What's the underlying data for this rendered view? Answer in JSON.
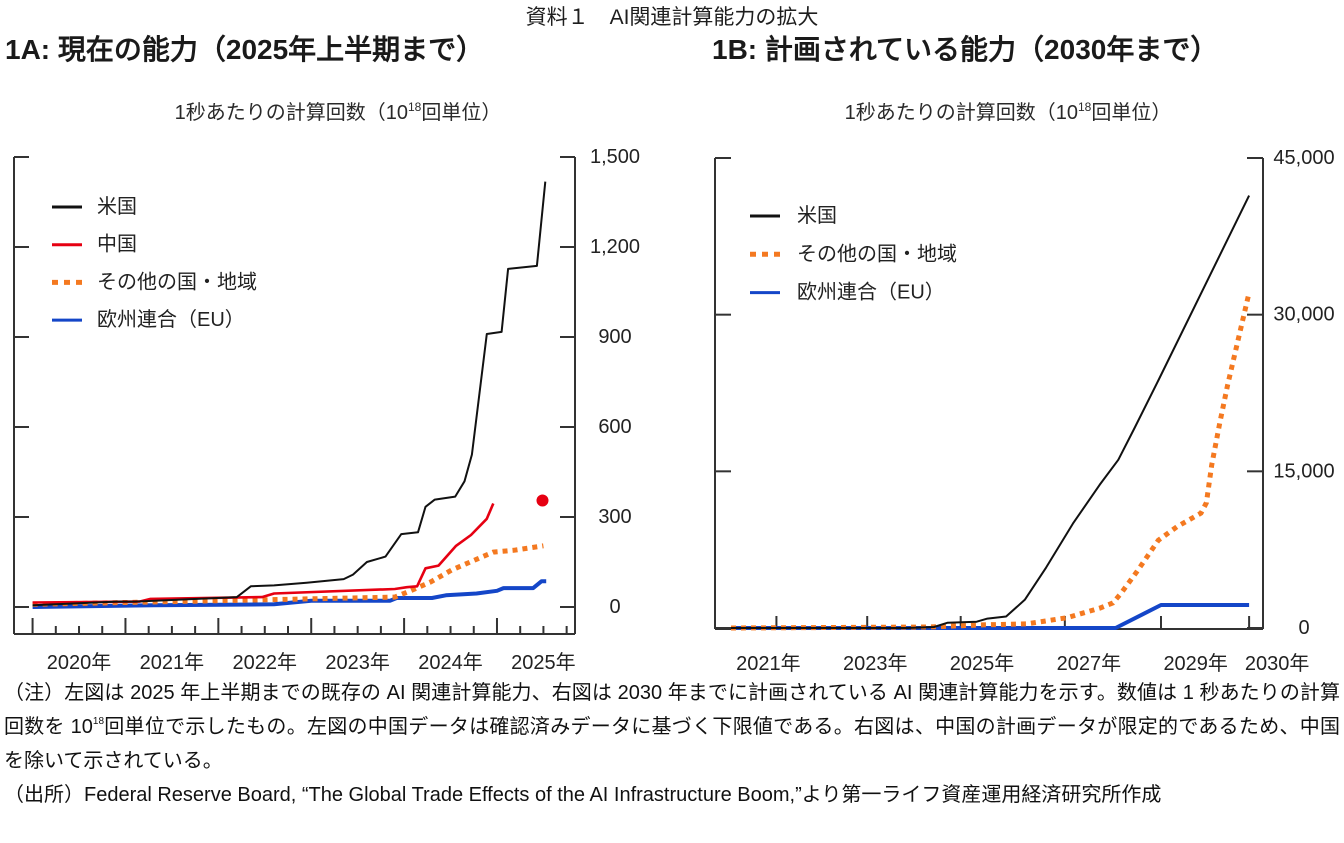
{
  "figure_title": "資料１　AI関連計算能力の拡大",
  "chart_data": [
    {
      "type": "line",
      "title": "1A: 現在の能力（2025年上半期まで）",
      "ylabel": {
        "prefix": "1秒あたりの計算回数（10",
        "exponent": "18",
        "suffix": "回単位）"
      },
      "xlabel": "",
      "xlim": [
        2019.8,
        2025.84
      ],
      "ylim": [
        0,
        1500
      ],
      "y_axis_side": "right",
      "grid": false,
      "legend_position": "top-left",
      "yticks": [
        0,
        300,
        600,
        900,
        1200,
        1500
      ],
      "ytick_labels": [
        "0",
        "300",
        "600",
        "900",
        "1,200",
        "1,500"
      ],
      "xticks_major": [
        2020,
        2021,
        2022,
        2023,
        2024,
        2025
      ],
      "xticks_minor": [
        2020.25,
        2020.5,
        2020.75,
        2021.25,
        2021.5,
        2021.75,
        2022.25,
        2022.5,
        2022.75,
        2023.25,
        2023.5,
        2023.75,
        2024.25,
        2024.5,
        2024.75,
        2025.25,
        2025.5,
        2025.75
      ],
      "xtick_labels": [
        "2020年",
        "2021年",
        "2022年",
        "2023年",
        "2024年",
        "2025年"
      ],
      "xtick_label_years": [
        2020,
        2021,
        2022,
        2023,
        2024,
        2025
      ],
      "xtick_label_align": "mid-year",
      "series": [
        {
          "name": "米国",
          "color": "#111111",
          "style": "solid",
          "points": [
            [
              2020.0,
              6
            ],
            [
              2020.9,
              18
            ],
            [
              2021.1,
              18
            ],
            [
              2022.2,
              33
            ],
            [
              2022.35,
              69
            ],
            [
              2022.6,
              72
            ],
            [
              2022.95,
              81
            ],
            [
              2023.35,
              93
            ],
            [
              2023.45,
              108
            ],
            [
              2023.6,
              150
            ],
            [
              2023.8,
              168
            ],
            [
              2023.97,
              243
            ],
            [
              2024.15,
              249
            ],
            [
              2024.23,
              334
            ],
            [
              2024.33,
              358
            ],
            [
              2024.55,
              368
            ],
            [
              2024.65,
              419
            ],
            [
              2024.73,
              508
            ],
            [
              2024.89,
              910
            ],
            [
              2025.05,
              917
            ],
            [
              2025.12,
              1127
            ],
            [
              2025.43,
              1137
            ],
            [
              2025.52,
              1418
            ]
          ]
        },
        {
          "name": "中国",
          "color": "#e60012",
          "style": "solid",
          "points": [
            [
              2020.0,
              15
            ],
            [
              2021.15,
              18
            ],
            [
              2021.27,
              27
            ],
            [
              2022.47,
              33
            ],
            [
              2022.6,
              45
            ],
            [
              2023.9,
              60
            ],
            [
              2024.03,
              66
            ],
            [
              2024.14,
              69
            ],
            [
              2024.23,
              129
            ],
            [
              2024.37,
              138
            ],
            [
              2024.56,
              204
            ],
            [
              2024.72,
              240
            ],
            [
              2024.89,
              294
            ],
            [
              2024.96,
              345
            ]
          ]
        },
        {
          "name": "その他の国・地域",
          "color": "#f47920",
          "style": "dotted",
          "points": [
            [
              2020.0,
              9
            ],
            [
              2021.5,
              18
            ],
            [
              2022.5,
              24
            ],
            [
              2023.9,
              33
            ],
            [
              2024.07,
              54
            ],
            [
              2024.29,
              84
            ],
            [
              2024.51,
              123
            ],
            [
              2024.78,
              159
            ],
            [
              2024.96,
              183
            ],
            [
              2025.18,
              189
            ],
            [
              2025.5,
              204
            ]
          ]
        },
        {
          "name": "欧州連合（EU）",
          "color": "#1446c8",
          "style": "solid",
          "points": [
            [
              2020.0,
              0
            ],
            [
              2021.3,
              6
            ],
            [
              2022.6,
              9
            ],
            [
              2022.8,
              15
            ],
            [
              2023.0,
              21
            ],
            [
              2023.85,
              21
            ],
            [
              2023.92,
              30
            ],
            [
              2024.3,
              30
            ],
            [
              2024.45,
              39
            ],
            [
              2024.78,
              45
            ],
            [
              2025.0,
              54
            ],
            [
              2025.07,
              63
            ],
            [
              2025.39,
              63
            ],
            [
              2025.48,
              86
            ],
            [
              2025.53,
              86
            ]
          ]
        }
      ],
      "markers": [
        {
          "series": "中国",
          "x": 2025.49,
          "y": 355,
          "color": "#e60012"
        }
      ]
    },
    {
      "type": "line",
      "title": "1B: 計画されている能力（2030年まで）",
      "ylabel": {
        "prefix": "1秒あたりの計算回数（10",
        "exponent": "18",
        "suffix": "回単位）"
      },
      "xlabel": "",
      "xlim": [
        2020.0,
        2030.26
      ],
      "ylim": [
        0,
        45000
      ],
      "y_axis_side": "right",
      "grid": false,
      "legend_position": "top-left",
      "yticks": [
        0,
        15000,
        30000,
        45000
      ],
      "ytick_labels": [
        "0",
        "15,000",
        "30,000",
        "45,000"
      ],
      "xticks_major": [
        2021.15,
        2022.85,
        2024.6,
        2026.55,
        2028.35,
        2030.0
      ],
      "xticks_minor": [],
      "xtick_labels": [
        "2021年",
        "2023年",
        "2025年",
        "2027年",
        "2029年",
        "2030年"
      ],
      "xtick_label_years": [
        2021,
        2023,
        2025,
        2027,
        2029,
        2030
      ],
      "xtick_label_align": "on-year",
      "series": [
        {
          "name": "米国",
          "color": "#111111",
          "style": "solid",
          "points": [
            [
              2020.3,
              0
            ],
            [
              2023.6,
              0
            ],
            [
              2024.1,
              100
            ],
            [
              2024.35,
              500
            ],
            [
              2024.9,
              600
            ],
            [
              2025.1,
              900
            ],
            [
              2025.45,
              1100
            ],
            [
              2025.8,
              2700
            ],
            [
              2026.2,
              5800
            ],
            [
              2026.7,
              10000
            ],
            [
              2027.2,
              13700
            ],
            [
              2027.55,
              16100
            ],
            [
              2027.85,
              19100
            ],
            [
              2028.3,
              23700
            ],
            [
              2030.0,
              41400
            ]
          ]
        },
        {
          "name": "その他の国・地域",
          "color": "#f47920",
          "style": "dotted",
          "points": [
            [
              2020.3,
              0
            ],
            [
              2024.0,
              100
            ],
            [
              2025.0,
              300
            ],
            [
              2025.85,
              400
            ],
            [
              2026.6,
              1000
            ],
            [
              2027.2,
              1900
            ],
            [
              2027.45,
              2400
            ],
            [
              2027.6,
              3300
            ],
            [
              2027.9,
              5400
            ],
            [
              2028.3,
              8400
            ],
            [
              2028.65,
              9700
            ],
            [
              2029.1,
              11000
            ],
            [
              2029.2,
              12000
            ],
            [
              2029.3,
              15600
            ],
            [
              2029.45,
              19600
            ],
            [
              2029.6,
              23300
            ],
            [
              2030.0,
              32100
            ]
          ]
        },
        {
          "name": "欧州連合（EU）",
          "color": "#1446c8",
          "style": "solid",
          "points": [
            [
              2020.3,
              0
            ],
            [
              2027.5,
              0
            ],
            [
              2028.35,
              2200
            ],
            [
              2030.0,
              2200
            ]
          ]
        }
      ],
      "markers": []
    }
  ],
  "notes": {
    "note_part1": "（注）左図は 2025 年上半期までの既存の AI 関連計算能力、右図は 2030 年までに計画されている AI 関連計算能力を示す。数値は 1 秒あたりの計算回数を 10",
    "note_sup": "18",
    "note_part2": "回単位で示したもの。左図の中国データは確認済みデータに基づく下限値である。右図は、中国の計画データが限定的であるため、中国を除いて示されている。",
    "source": "（出所）Federal Reserve Board, “The Global Trade Effects of the AI Infrastructure Boom,”より第一ライフ資産運用経済研究所作成"
  }
}
